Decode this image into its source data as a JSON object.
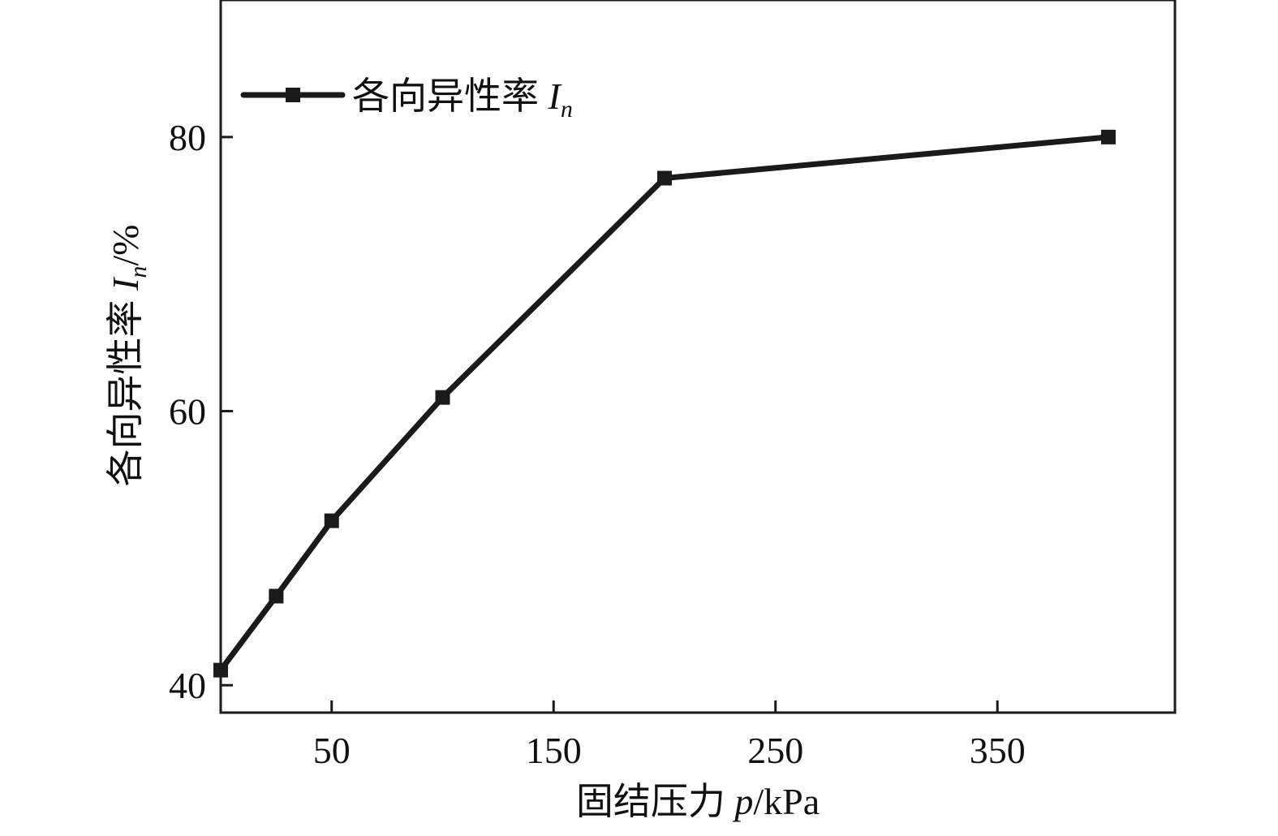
{
  "chart_data": {
    "type": "line",
    "title": "",
    "xlabel": "固结压力 p/kPa",
    "ylabel": "各向异性率 In/%",
    "xlim": [
      0,
      430
    ],
    "ylim": [
      38,
      90
    ],
    "xticks": [
      50,
      150,
      250,
      350
    ],
    "yticks": [
      40,
      60,
      80
    ],
    "grid": false,
    "legend_position": "top-left",
    "series": [
      {
        "name": "各向异性率 In",
        "color": "#1a1a1a",
        "marker": "square",
        "x": [
          0,
          25,
          50,
          100,
          200,
          400
        ],
        "y": [
          41.1,
          46.5,
          52.0,
          61.0,
          77.0,
          80.0
        ]
      }
    ]
  },
  "labels": {
    "xlabel_main": "固结压力 ",
    "xlabel_var": "p",
    "xlabel_unit": "/kPa",
    "ylabel_main": "各向异性率 ",
    "ylabel_var": "I",
    "ylabel_sub": "n",
    "ylabel_unit": "/%",
    "legend_main": "各向异性率 ",
    "legend_var": "I",
    "legend_sub": "n"
  }
}
